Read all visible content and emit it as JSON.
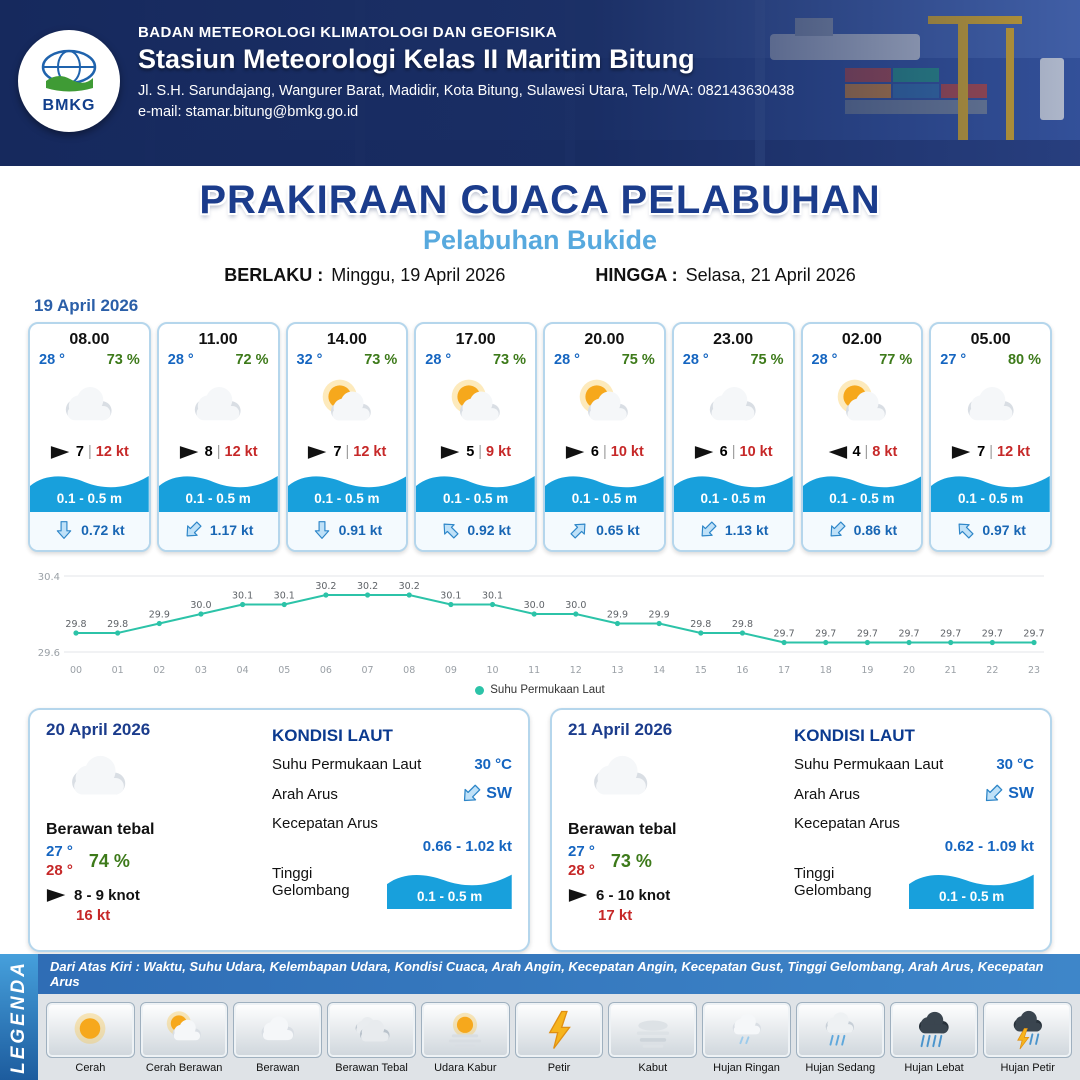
{
  "header": {
    "logo_text": "BMKG",
    "org": "BADAN METEOROLOGI KLIMATOLOGI DAN GEOFISIKA",
    "station": "Stasiun Meteorologi Kelas II Maritim Bitung",
    "address": "Jl. S.H. Sarundajang, Wangurer Barat, Madidir, Kota Bitung, Sulawesi Utara, Telp./WA: 082143630438",
    "email": "e-mail: stamar.bitung@bmkg.go.id"
  },
  "title": {
    "main": "PRAKIRAAN CUACA PELABUHAN",
    "subtitle": "Pelabuhan Bukide",
    "berlaku_label": "BERLAKU :",
    "berlaku_value": "Minggu, 19 April 2026",
    "hingga_label": "HINGGA :",
    "hingga_value": "Selasa, 21 April 2026"
  },
  "hourly_date": "19 April 2026",
  "hourly": [
    {
      "time": "08.00",
      "temp": "28 °",
      "rh": "73 %",
      "icon": "berawan",
      "wind": "7",
      "wind_dir": "right",
      "gust": "12 kt",
      "wave": "0.1 - 0.5 m",
      "current": "0.72 kt",
      "current_dir": "S"
    },
    {
      "time": "11.00",
      "temp": "28 °",
      "rh": "72 %",
      "icon": "berawan",
      "wind": "8",
      "wind_dir": "right",
      "gust": "12 kt",
      "wave": "0.1 - 0.5 m",
      "current": "1.17 kt",
      "current_dir": "SW"
    },
    {
      "time": "14.00",
      "temp": "32 °",
      "rh": "73 %",
      "icon": "cerah-berawan",
      "wind": "7",
      "wind_dir": "right",
      "gust": "12 kt",
      "wave": "0.1 - 0.5 m",
      "current": "0.91 kt",
      "current_dir": "S"
    },
    {
      "time": "17.00",
      "temp": "28 °",
      "rh": "73 %",
      "icon": "cerah-berawan",
      "wind": "5",
      "wind_dir": "right",
      "gust": "9 kt",
      "wave": "0.1 - 0.5 m",
      "current": "0.92 kt",
      "current_dir": "NW"
    },
    {
      "time": "20.00",
      "temp": "28 °",
      "rh": "75 %",
      "icon": "cerah-berawan",
      "wind": "6",
      "wind_dir": "right",
      "gust": "10 kt",
      "wave": "0.1 - 0.5 m",
      "current": "0.65 kt",
      "current_dir": "NE"
    },
    {
      "time": "23.00",
      "temp": "28 °",
      "rh": "75 %",
      "icon": "berawan",
      "wind": "6",
      "wind_dir": "right",
      "gust": "10 kt",
      "wave": "0.1 - 0.5 m",
      "current": "1.13 kt",
      "current_dir": "SW"
    },
    {
      "time": "02.00",
      "temp": "28 °",
      "rh": "77 %",
      "icon": "cerah-berawan",
      "wind": "4",
      "wind_dir": "left",
      "gust": "8 kt",
      "wave": "0.1 - 0.5 m",
      "current": "0.86 kt",
      "current_dir": "SW"
    },
    {
      "time": "05.00",
      "temp": "27 °",
      "rh": "80 %",
      "icon": "berawan",
      "wind": "7",
      "wind_dir": "right",
      "gust": "12 kt",
      "wave": "0.1 - 0.5 m",
      "current": "0.97 kt",
      "current_dir": "NW"
    }
  ],
  "chart_data": {
    "type": "line",
    "x": [
      "00",
      "01",
      "02",
      "03",
      "04",
      "05",
      "06",
      "07",
      "08",
      "09",
      "10",
      "11",
      "12",
      "13",
      "14",
      "15",
      "16",
      "17",
      "18",
      "19",
      "20",
      "21",
      "22",
      "23"
    ],
    "series": [
      {
        "name": "Suhu Permukaan Laut",
        "values": [
          29.8,
          29.8,
          29.9,
          30.0,
          30.1,
          30.1,
          30.2,
          30.2,
          30.2,
          30.1,
          30.1,
          30.0,
          30.0,
          29.9,
          29.9,
          29.8,
          29.8,
          29.7,
          29.7,
          29.7,
          29.7,
          29.7,
          29.7,
          29.7
        ]
      }
    ],
    "ylim": [
      29.6,
      30.4
    ],
    "xlabel": "",
    "ylabel": "",
    "line_color": "#2cc3a8",
    "grid": true,
    "legend_position": "bottom"
  },
  "daily": [
    {
      "date": "20 April 2026",
      "icon": "berawan",
      "condition": "Berawan tebal",
      "temp_min": "27 °",
      "temp_max": "28 °",
      "rh": "74 %",
      "wind": "8 - 9 knot",
      "gust": "16 kt",
      "sea": {
        "title": "KONDISI LAUT",
        "sst_label": "Suhu Permukaan Laut",
        "sst": "30 °C",
        "dir_label": "Arah Arus",
        "dir": "SW",
        "speed_label": "Kecepatan Arus",
        "speed": "0.66 - 1.02 kt",
        "wave_label": "Tinggi Gelombang",
        "wave": "0.1 - 0.5 m"
      }
    },
    {
      "date": "21 April 2026",
      "icon": "berawan",
      "condition": "Berawan tebal",
      "temp_min": "27 °",
      "temp_max": "28 °",
      "rh": "73 %",
      "wind": "6 - 10 knot",
      "gust": "17 kt",
      "sea": {
        "title": "KONDISI LAUT",
        "sst_label": "Suhu Permukaan Laut",
        "sst": "30 °C",
        "dir_label": "Arah Arus",
        "dir": "SW",
        "speed_label": "Kecepatan Arus",
        "speed": "0.62 - 1.09 kt",
        "wave_label": "Tinggi Gelombang",
        "wave": "0.1 - 0.5 m"
      }
    }
  ],
  "legend": {
    "title": "LEGENDA",
    "description": "Dari Atas Kiri : Waktu, Suhu Udara, Kelembapan Udara, Kondisi Cuaca, Arah Angin, Kecepatan Angin, Kecepatan Gust, Tinggi Gelombang, Arah Arus, Kecepatan Arus",
    "items": [
      {
        "label": "Cerah",
        "icon": "cerah"
      },
      {
        "label": "Cerah Berawan",
        "icon": "cerah-berawan"
      },
      {
        "label": "Berawan",
        "icon": "berawan"
      },
      {
        "label": "Berawan Tebal",
        "icon": "berawan-tebal"
      },
      {
        "label": "Udara Kabur",
        "icon": "udara-kabur"
      },
      {
        "label": "Petir",
        "icon": "petir"
      },
      {
        "label": "Kabut",
        "icon": "kabut"
      },
      {
        "label": "Hujan Ringan",
        "icon": "hujan-ringan"
      },
      {
        "label": "Hujan Sedang",
        "icon": "hujan-sedang"
      },
      {
        "label": "Hujan Lebat",
        "icon": "hujan-lebat"
      },
      {
        "label": "Hujan Petir",
        "icon": "hujan-petir"
      }
    ]
  },
  "colors": {
    "title_navy": "#1b3c8c",
    "subtitle_blue": "#57a9de",
    "temp_blue": "#1565c0",
    "humidity_green": "#3d7a1a",
    "gust_red": "#c62828",
    "wave_blue": "#18a0dc",
    "chart_teal": "#2cc3a8",
    "legend_bar_blue": "#2f6db5"
  }
}
